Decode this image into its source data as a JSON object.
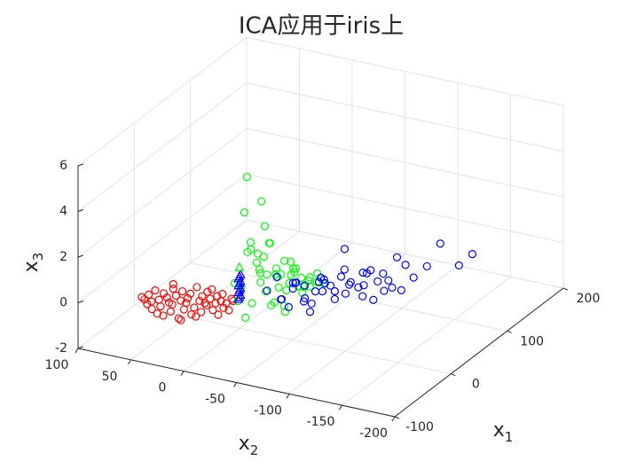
{
  "chart_data": {
    "type": "scatter3d",
    "title": "ICA应用于iris上",
    "xlabel": {
      "text": "x",
      "sub": "1"
    },
    "ylabel": {
      "text": "x",
      "sub": "2"
    },
    "zlabel": {
      "text": "x",
      "sub": "3"
    },
    "xlim": [
      -100,
      200
    ],
    "xticks": [
      -100,
      0,
      100,
      200
    ],
    "ylim": [
      -200,
      100
    ],
    "yticks": [
      -200,
      -150,
      -100,
      -50,
      0,
      50,
      100
    ],
    "zlim": [
      -2,
      6
    ],
    "zticks": [
      -2,
      0,
      2,
      4,
      6
    ],
    "grid": true,
    "series": [
      {
        "color": "#ff0000",
        "marker": "circle",
        "x": [
          -73,
          -72,
          -71,
          -70,
          -70,
          -69,
          -68,
          -68,
          -67,
          -66,
          -66,
          -65,
          -64,
          -64,
          -63,
          -62,
          -62,
          -61,
          -60,
          -60,
          -59,
          -58,
          -58,
          -57,
          -56,
          -56,
          -55,
          -54,
          -54,
          -53,
          -52,
          -52,
          -51,
          -50,
          -50,
          -49,
          -48,
          -48,
          -47,
          -46,
          -46,
          -45,
          -44,
          -44,
          -43,
          -42,
          -41,
          -40,
          -58,
          -62
        ],
        "y": [
          54,
          52,
          50,
          49,
          46,
          47,
          44,
          42,
          41,
          40,
          37,
          38,
          35,
          33,
          32,
          30,
          31,
          28,
          26,
          24,
          23,
          22,
          20,
          19,
          16,
          17,
          14,
          12,
          13,
          10,
          8,
          9,
          6,
          4,
          5,
          2,
          0,
          1,
          -2,
          -4,
          -3,
          -6,
          -8,
          -7,
          -10,
          -12,
          -14,
          -15,
          25,
          30
        ],
        "z": [
          0.2,
          0.1,
          -0.1,
          0.3,
          -0.3,
          0,
          0.5,
          -0.5,
          0.1,
          -0.2,
          0.4,
          -0.6,
          0.2,
          0,
          -0.4,
          0.6,
          -0.1,
          0.3,
          -0.7,
          0.1,
          0.5,
          -0.3,
          0,
          0.2,
          -0.5,
          0.4,
          -0.2,
          0.7,
          -0.6,
          0.1,
          0.3,
          -0.4,
          0,
          0.5,
          -0.1,
          0.2,
          -0.3,
          0.6,
          0,
          -0.5,
          0.3,
          0.1,
          -0.2,
          0.4,
          0,
          -0.3,
          0.2,
          0.1,
          -0.8,
          0.8
        ]
      },
      {
        "color": "#00ff00",
        "marker": "circle",
        "x": [
          -25,
          -20,
          -18,
          -15,
          -12,
          -10,
          -8,
          -5,
          -3,
          0,
          -28,
          -22,
          -16,
          -14,
          -10,
          -6,
          -2,
          2,
          5,
          8,
          -20,
          -15,
          -12,
          -8,
          -4,
          0,
          4,
          8,
          12,
          15,
          -26,
          -18,
          -10,
          -6,
          -2,
          3,
          6,
          10,
          14,
          18,
          -24,
          -14,
          -8,
          -4,
          0,
          5,
          10,
          -12,
          -20,
          -16
        ],
        "y": [
          -20,
          -15,
          -30,
          -25,
          -35,
          -40,
          -30,
          -45,
          -50,
          -55,
          -10,
          -22,
          -28,
          -32,
          -38,
          -42,
          -48,
          -52,
          -58,
          -62,
          -18,
          -24,
          -26,
          -34,
          -36,
          -44,
          -46,
          -54,
          -60,
          -65,
          -12,
          -20,
          -28,
          -40,
          -44,
          -50,
          -56,
          -60,
          -66,
          -70,
          -14,
          -26,
          -32,
          -38,
          -42,
          -48,
          -56,
          -30,
          -16,
          -20
        ],
        "z": [
          5.3,
          3.6,
          4.2,
          1.8,
          2.3,
          1.2,
          0.8,
          1.5,
          0.9,
          0.4,
          0.6,
          2.4,
          1.0,
          0.2,
          -0.3,
          0.9,
          0.5,
          1.1,
          0.3,
          0.7,
          1.9,
          1.4,
          0.5,
          -0.5,
          0.8,
          0.1,
          1.3,
          0.6,
          0.2,
          0.4,
          -0.2,
          2.0,
          1.6,
          0.3,
          -0.8,
          0.9,
          0.0,
          0.5,
          0.8,
          0.3,
          0.4,
          1.1,
          2.2,
          0.7,
          -0.6,
          1.0,
          0.2,
          3.0,
          -1.0,
          -0.4
        ]
      },
      {
        "color": "#0000ff",
        "marker": "circle",
        "x": [
          -8,
          -2,
          5,
          10,
          15,
          20,
          25,
          30,
          35,
          40,
          0,
          8,
          12,
          18,
          22,
          28,
          32,
          38,
          45,
          50,
          3,
          10,
          16,
          20,
          26,
          34,
          42,
          48,
          55,
          60,
          12,
          18,
          24,
          30,
          36,
          44,
          52,
          58,
          65,
          70,
          20,
          28,
          40,
          50,
          62,
          75,
          80,
          85,
          46,
          54
        ],
        "y": [
          -30,
          -40,
          -50,
          -45,
          -60,
          -70,
          -65,
          -80,
          -85,
          -95,
          -35,
          -42,
          -55,
          -62,
          -68,
          -75,
          -88,
          -92,
          -100,
          -110,
          -38,
          -48,
          -58,
          -66,
          -72,
          -82,
          -98,
          -105,
          -115,
          -125,
          -44,
          -52,
          -64,
          -74,
          -80,
          -94,
          -108,
          -118,
          -130,
          -140,
          -50,
          -60,
          -78,
          -90,
          -120,
          -150,
          -165,
          -175,
          -102,
          -112
        ],
        "z": [
          0.1,
          -0.3,
          0.4,
          0.0,
          -0.6,
          0.3,
          -0.2,
          0.5,
          0.1,
          -0.4,
          0.6,
          -0.8,
          0.2,
          -0.1,
          0.4,
          -0.5,
          0.3,
          0.0,
          0.7,
          -0.2,
          -0.4,
          0.3,
          -1.0,
          0.5,
          0.1,
          -0.3,
          0.6,
          0.2,
          -0.1,
          0.9,
          0.2,
          -0.5,
          0.4,
          -0.2,
          0.7,
          0.0,
          0.5,
          1.2,
          0.3,
          0.8,
          -0.7,
          0.1,
          1.5,
          0.4,
          -0.3,
          1.8,
          0.9,
          1.4,
          -0.6,
          0.2
        ]
      },
      {
        "color": "#0000ff",
        "marker": "triangle",
        "x": [
          -10,
          -10,
          -10,
          -10,
          -10,
          -10,
          -10,
          -10,
          -10,
          -10,
          -10,
          -10
        ],
        "y": [
          -4,
          -5,
          -6,
          -4,
          -5,
          -6,
          -4,
          -5,
          -6,
          -4,
          -5,
          -6
        ],
        "z": [
          -0.5,
          -0.4,
          -0.3,
          -0.2,
          -0.1,
          0,
          0.1,
          0.2,
          0.3,
          0.4,
          0.5,
          0.6
        ]
      },
      {
        "color": "#00ff00",
        "marker": "triangle",
        "x": [
          -10
        ],
        "y": [
          -5
        ],
        "z": [
          0.9
        ]
      }
    ]
  }
}
